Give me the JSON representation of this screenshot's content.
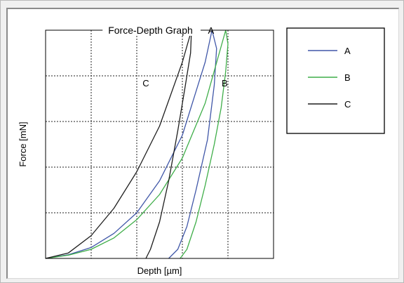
{
  "chart_data": {
    "type": "line",
    "title": "Force-Depth Graph",
    "xlabel": "Depth [µm]",
    "ylabel": "Force [mN]",
    "xlim": [
      0,
      5
    ],
    "ylim": [
      0,
      5
    ],
    "grid": true,
    "grid_style": "dotted",
    "tick_labels": false,
    "legend_position": "top-right outside",
    "series": [
      {
        "name": "A",
        "color": "#4057a8",
        "loading": {
          "x": [
            0,
            0.5,
            1.0,
            1.5,
            2.0,
            2.5,
            3.0,
            3.5,
            3.65
          ],
          "y": [
            0,
            0.08,
            0.24,
            0.55,
            1.0,
            1.7,
            2.7,
            4.3,
            5.0
          ]
        },
        "unloading": {
          "x": [
            3.65,
            3.75,
            3.7,
            3.55,
            3.3,
            3.1,
            2.9,
            2.7
          ],
          "y": [
            5.0,
            4.6,
            3.8,
            2.6,
            1.5,
            0.7,
            0.2,
            0.0
          ]
        },
        "end_label": "A"
      },
      {
        "name": "B",
        "color": "#3fae49",
        "loading": {
          "x": [
            0,
            0.5,
            1.0,
            1.5,
            2.0,
            2.5,
            3.0,
            3.5,
            3.95
          ],
          "y": [
            0,
            0.07,
            0.2,
            0.45,
            0.85,
            1.4,
            2.2,
            3.4,
            5.0
          ]
        },
        "unloading": {
          "x": [
            3.95,
            4.0,
            3.95,
            3.85,
            3.7,
            3.5,
            3.3,
            3.1,
            2.95
          ],
          "y": [
            5.0,
            4.7,
            4.1,
            3.3,
            2.5,
            1.6,
            0.8,
            0.2,
            0.0
          ]
        },
        "end_label": "B"
      },
      {
        "name": "C",
        "color": "#1e1e1e",
        "loading": {
          "x": [
            0,
            0.5,
            1.0,
            1.5,
            2.0,
            2.5,
            3.0,
            3.2
          ],
          "y": [
            0,
            0.12,
            0.5,
            1.1,
            1.9,
            2.9,
            4.3,
            5.0
          ]
        },
        "unloading": {
          "x": [
            3.2,
            3.18,
            3.05,
            2.9,
            2.7,
            2.5,
            2.3,
            2.2
          ],
          "y": [
            5.0,
            4.5,
            3.7,
            2.8,
            1.7,
            0.8,
            0.2,
            0.0
          ]
        },
        "end_label": "C"
      }
    ]
  }
}
